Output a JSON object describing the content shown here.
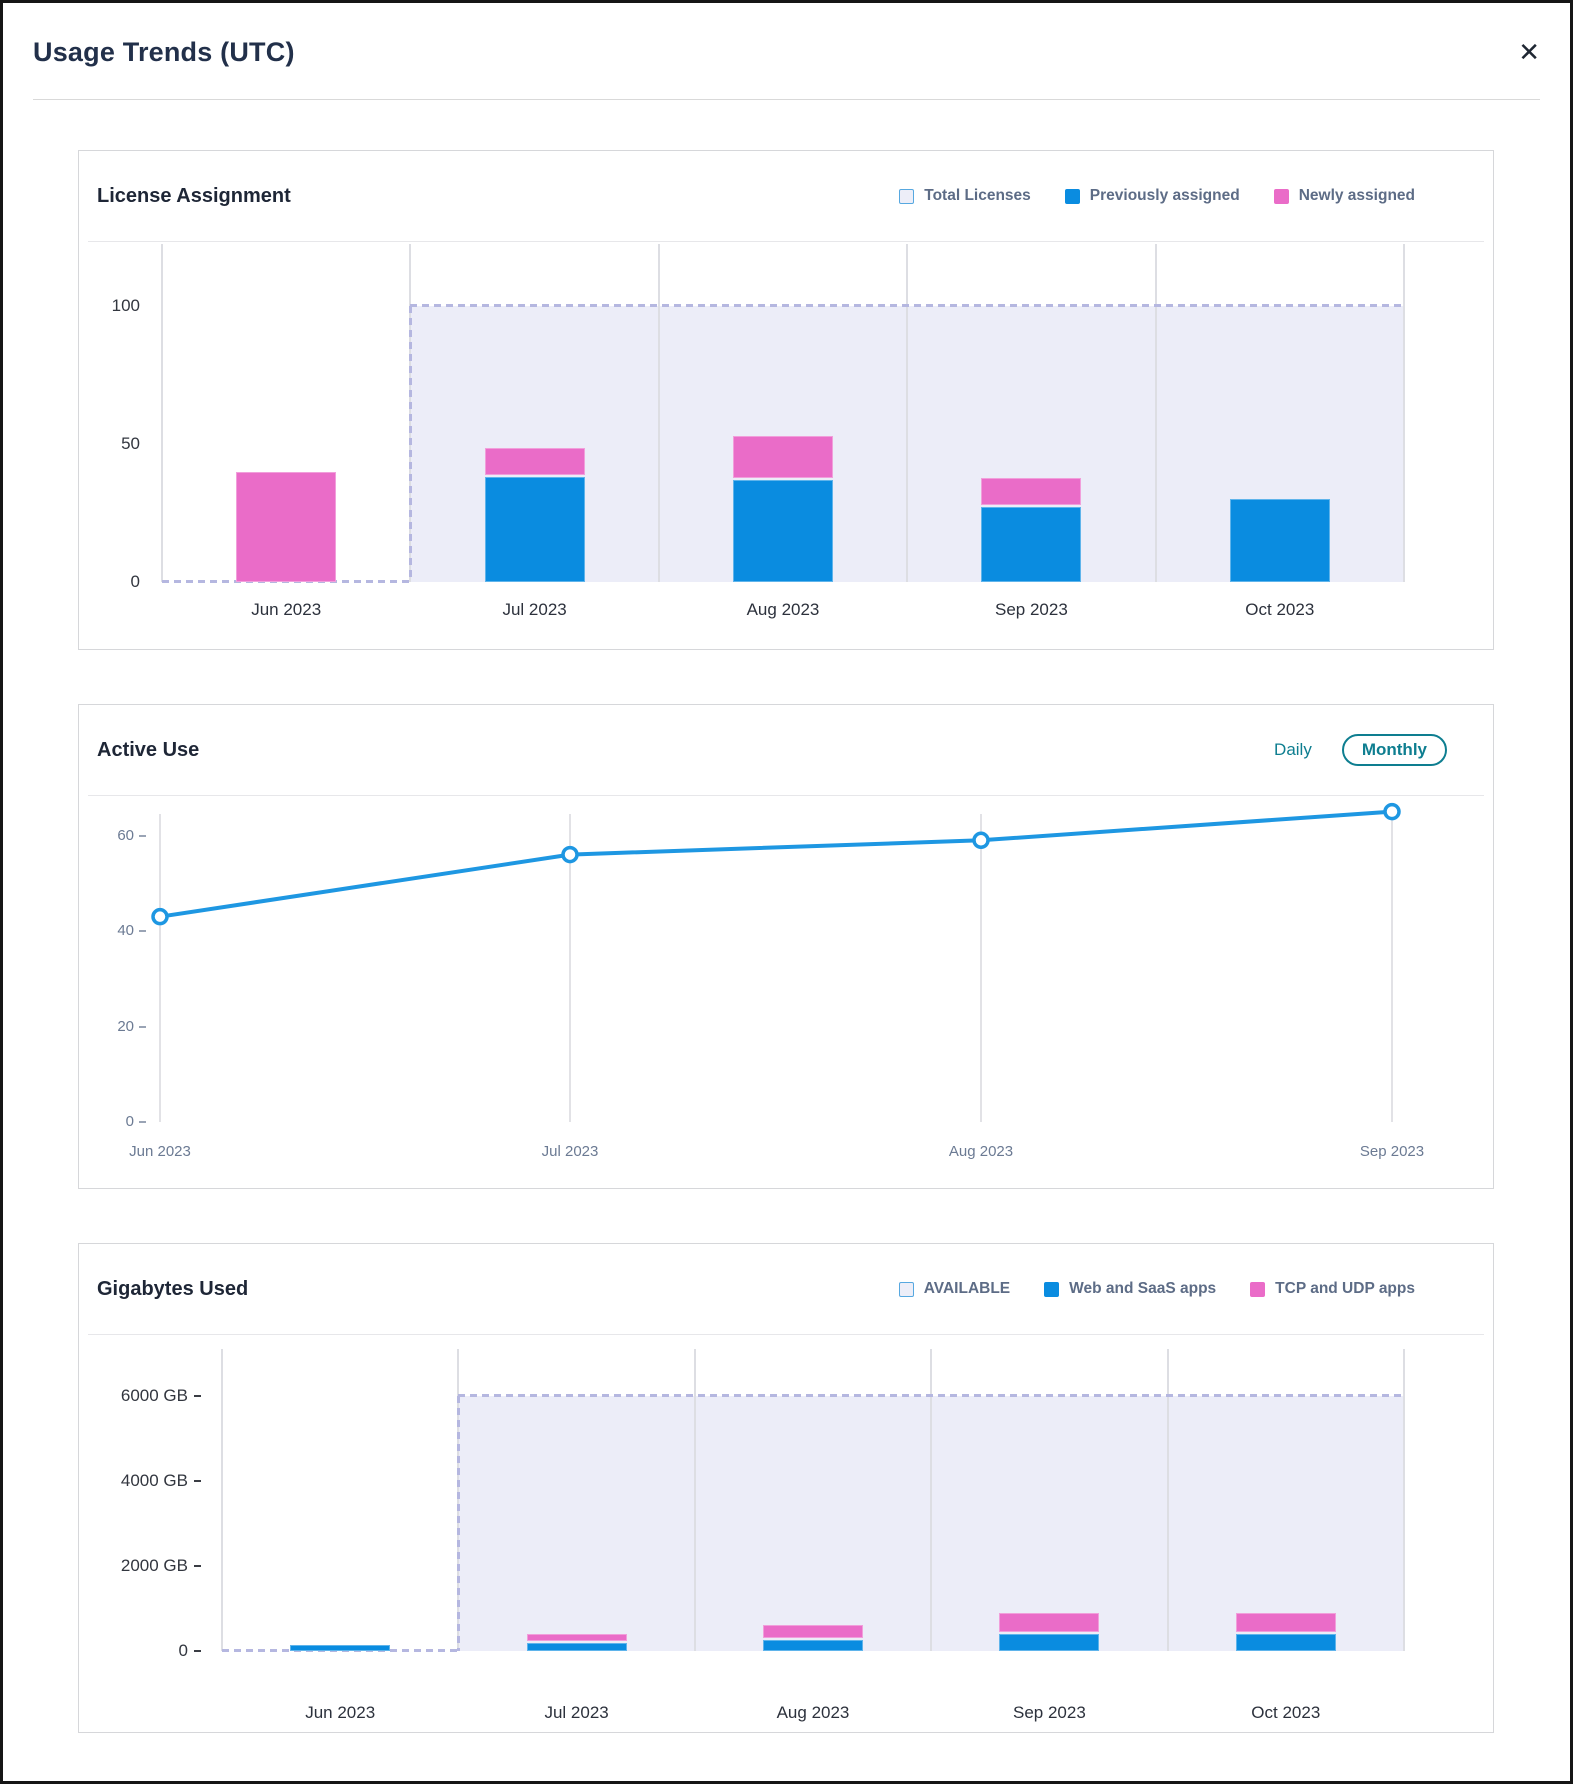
{
  "modal": {
    "title": "Usage Trends (UTC)",
    "close_icon": "✕"
  },
  "colors": {
    "blue": "#0a8ce0",
    "pink": "#ea6cc8",
    "teal": "#0e7e90",
    "line_blue": "#1e97e2",
    "available_fill": "#ecedf8",
    "dashed_border": "#b5b7e0"
  },
  "license_assignment": {
    "title": "License Assignment",
    "legend": [
      {
        "label": "Total Licenses",
        "swatch": "outline"
      },
      {
        "label": "Previously assigned",
        "swatch": "blue"
      },
      {
        "label": "Newly assigned",
        "swatch": "pink"
      }
    ]
  },
  "active_use": {
    "title": "Active Use",
    "toggle": {
      "daily": "Daily",
      "monthly": "Monthly",
      "selected": "Monthly"
    }
  },
  "gigabytes_used": {
    "title": "Gigabytes Used",
    "legend": [
      {
        "label": "AVAILABLE",
        "swatch": "outline"
      },
      {
        "label": "Web and SaaS apps",
        "swatch": "blue"
      },
      {
        "label": "TCP and UDP apps",
        "swatch": "pink"
      }
    ]
  },
  "chart_data": [
    {
      "type": "bar",
      "title": "License Assignment",
      "categories": [
        "Jun 2023",
        "Jul 2023",
        "Aug 2023",
        "Sep 2023",
        "Oct 2023"
      ],
      "series": [
        {
          "name": "Previously assigned",
          "color": "#0a8ce0",
          "values": [
            0,
            38,
            37,
            27,
            30
          ]
        },
        {
          "name": "Newly assigned",
          "color": "#ea6cc8",
          "values": [
            40,
            10,
            15,
            10,
            0
          ]
        }
      ],
      "total_reference": {
        "name": "Total Licenses",
        "value": 100,
        "from_category": "Jul 2023"
      },
      "ylim": [
        0,
        110
      ],
      "yticks": [
        0,
        50,
        100
      ],
      "ytick_suffix": "",
      "legend_position": "top-right",
      "grid": "vertical"
    },
    {
      "type": "line",
      "title": "Active Use",
      "x": [
        "Jun 2023",
        "Jul 2023",
        "Aug 2023",
        "Sep 2023"
      ],
      "series": [
        {
          "name": "Active Use",
          "color": "#1e97e2",
          "values": [
            43,
            56,
            59,
            65
          ]
        }
      ],
      "ylim": [
        0,
        68
      ],
      "yticks": [
        0,
        20,
        40,
        60
      ],
      "toggle_options": [
        "Daily",
        "Monthly"
      ],
      "toggle_selected": "Monthly",
      "grid": "vertical"
    },
    {
      "type": "bar",
      "title": "Gigabytes Used",
      "categories": [
        "Jun 2023",
        "Jul 2023",
        "Aug 2023",
        "Sep 2023",
        "Oct 2023"
      ],
      "series": [
        {
          "name": "Web and SaaS apps",
          "color": "#0a8ce0",
          "values": [
            150,
            200,
            250,
            400,
            400
          ]
        },
        {
          "name": "TCP and UDP apps",
          "color": "#ea6cc8",
          "values": [
            0,
            150,
            320,
            450,
            450
          ]
        }
      ],
      "total_reference": {
        "name": "AVAILABLE",
        "value": 6000,
        "from_category": "Jul 2023"
      },
      "ylim": [
        0,
        6600
      ],
      "yticks": [
        0,
        2000,
        4000,
        6000
      ],
      "ytick_suffix": " GB",
      "legend_position": "top-right",
      "grid": "vertical"
    }
  ]
}
